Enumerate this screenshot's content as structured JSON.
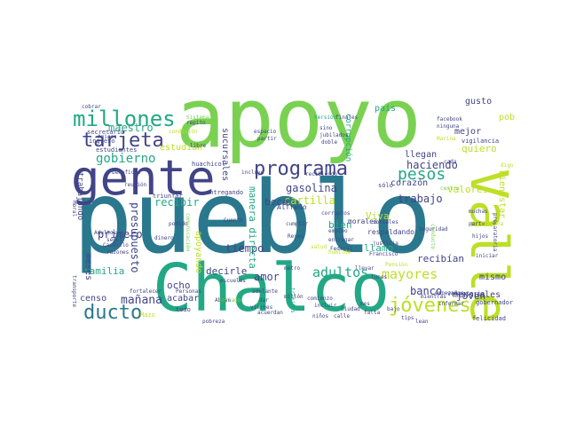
{
  "palette": {
    "green": "#7ad151",
    "teal": "#22a884",
    "blue": "#2a788e",
    "navy": "#414487",
    "purple": "#440154",
    "lime": "#bddf26",
    "yellow": "#fde725"
  },
  "words": {
    "apoyo": "apoyo",
    "pueblo": "pueblo",
    "chalco": "Chalco",
    "gente": "gente",
    "valle": "Valle",
    "millones": "millones",
    "tarjeta": "tarjeta",
    "programa": "programa",
    "jovenes": "jóvenes",
    "ducto": "ducto",
    "pesos": "pesos",
    "gobierno": "gobierno",
    "adultos": "adultos",
    "mayores": "mayores",
    "maestro": "maestro",
    "haciendo": "haciendo",
    "gasolina": "gasolina",
    "trabajo": "trabajo",
    "cartilla": "cartilla",
    "manana": "mañana",
    "primero": "primero",
    "presupuesto": "presupuesto",
    "tiempo": "tiempo",
    "amor": "amor",
    "banco": "banco",
    "familia": "familia",
    "recibir": "recibir",
    "beca": "beca",
    "quiero": "quiero",
    "valores": "valores",
    "joven": "joven",
    "mensuales": "mensuales",
    "bienestar": "Bienestar",
    "viva": "Viva",
    "bien": "bien",
    "llamo": "llamo",
    "mismo": "mismo",
    "recibian": "recibían",
    "manera_directa": "manera directa",
    "apoyando": "apoyando",
    "decirle": "decirle",
    "ocho": "ocho",
    "acabar": "acabar",
    "censo": "censo",
    "meses": "meses",
    "estudian": "estudian",
    "sucursales": "sucursales",
    "corazon": "corazón",
    "llegan": "llegan",
    "pais": "país",
    "mejor": "mejor",
    "gusto": "gusto",
    "pobres": "pobres",
    "corrupcion": "corrupción",
    "trabajando": "trabajando",
    "alfredo": "Alfredo",
    "todo": "todo",
    "mazo": "Mazo",
    "voluntario": "voluntario",
    "gobernador": "gobernador",
    "felicidad": "felicidad",
    "respaldando": "respaldando",
    "morales": "morales",
    "solo": "sólo",
    "secretario": "secretario",
    "ingreso": "ingreso",
    "estudiantes": "estudiantes",
    "sistema": "Sistema",
    "huachicol": "huachicol",
    "reunion": "reunión",
    "entregando": "entregando",
    "triunfar": "triunfar",
    "sino": "sino",
    "jubilados": "jubilados",
    "doble": "doble",
    "facebook": "facebook",
    "ninguna": "ninguna",
    "vigilancia": "vigilancia",
    "marina": "Marina",
    "necesidad": "necesidad",
    "entrega": "entrega",
    "cada": "cada",
    "digo": "digo",
    "nomas": "nomás",
    "libre": "libre",
    "noche": "noche",
    "partir": "partir",
    "version": "Versión",
    "preparatoria": "preparatoria",
    "muchas": "muchas",
    "corruptos": "corruptos",
    "reyes": "Reyes",
    "cumplir": "cumplir",
    "entregar": "entregar",
    "federal": "Federal",
    "justicia": "justicia",
    "sociales": "sociales",
    "seguridad": "Seguridad",
    "conducto": "conducto",
    "hijos": "hijos",
    "francisco": "Francisco",
    "millon": "millón",
    "empleo": "empleo",
    "ciudad": "Ciudad",
    "calle": "calle",
    "lunes": "lunes",
    "informar": "informar",
    "mientras": "mientras",
    "pobreza": "pobreza",
    "dinero": "dinero",
    "seguir": "seguir",
    "caudillo": "Caudillo",
    "razones": "razones",
    "moral": "Moral",
    "transporte": "transporte",
    "fortalecer": "fortalecer",
    "personas": "Personas",
    "escuelas": "escuelas",
    "abran": "Abran",
    "viernes": "viernes",
    "adelante": "adelante",
    "acuerdan": "acuerdan",
    "comienzo": "comienzo",
    "incluir": "incluir",
    "ninos": "niños",
    "dar": "dar",
    "mes": "mes",
    "falta": "falta",
    "lean": "lean",
    "tips": "tips",
    "cuento": "Cuento",
    "incluye": "incluye",
    "podido": "podido",
    "amigos": "Amigos",
    "cobrar": "cobrar",
    "repito": "repito",
    "condicion": "condición",
    "adultos_small": "Adultos",
    "beneficio": "beneficio",
    "recibiendo": "recibiendo",
    "metro": "metro",
    "comunicacion": "comunicación",
    "tramites": "trámites",
    "salud": "salud",
    "enviado": "enviado",
    "finales": "finales",
    "espacio": "espacio",
    "empezamos": "empezamos",
    "llevar": "llevar",
    "pension": "Pensión",
    "humilde": "humilde",
    "bajo": "bajo",
    "centro": "centro",
    "iniciar": "iniciar",
    "parte": "parte",
    "campana": "campaña"
  }
}
